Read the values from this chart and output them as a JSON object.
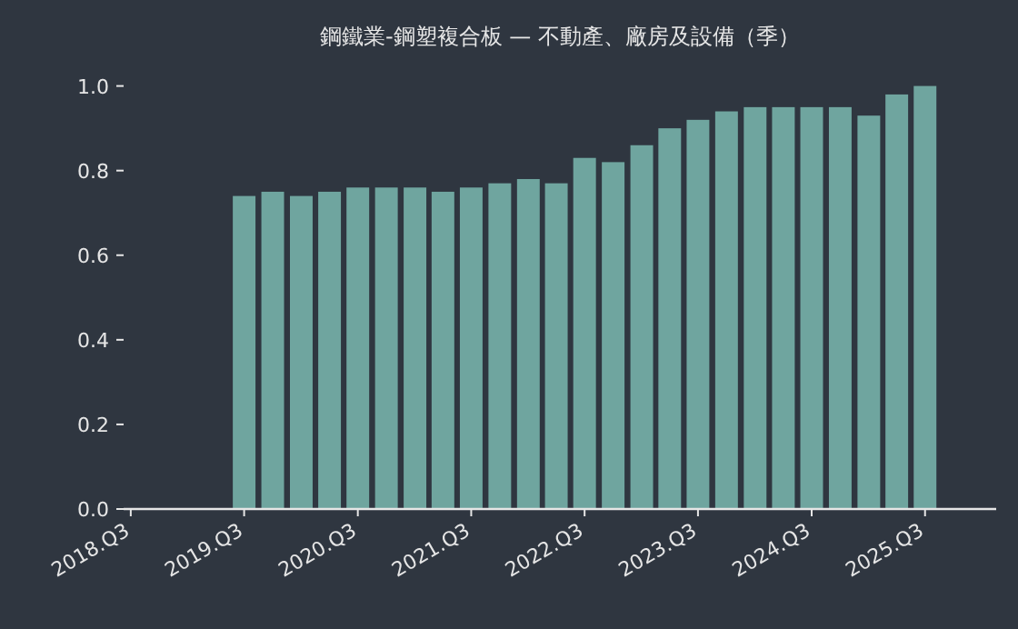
{
  "chart_data": {
    "type": "bar",
    "title": "鋼鐵業-鋼塑複合板 — 不動產、廠房及設備（季）",
    "x": [
      "2019-07",
      "2019-10",
      "2020-01",
      "2020-04",
      "2020-07",
      "2020-10",
      "2021-01",
      "2021-04",
      "2021-07",
      "2021-10",
      "2022-01",
      "2022-04",
      "2022-07",
      "2022-10",
      "2023-01",
      "2023-04",
      "2023-07",
      "2023-10",
      "2024-01",
      "2024-04",
      "2024-07",
      "2024-10",
      "2025-01",
      "2025-04",
      "2025-07"
    ],
    "values": [
      0.74,
      0.75,
      0.74,
      0.75,
      0.76,
      0.76,
      0.76,
      0.75,
      0.76,
      0.77,
      0.78,
      0.77,
      0.83,
      0.82,
      0.86,
      0.9,
      0.92,
      0.94,
      0.95,
      0.95,
      0.95,
      0.95,
      0.93,
      0.98,
      1.0
    ],
    "color": "#6fa59f",
    "xlim": [
      "2018-06-08",
      "2026-02-15"
    ],
    "xticks": [
      {
        "value": "2018-07",
        "label": "2018.Q3"
      },
      {
        "value": "2019-07",
        "label": "2019.Q3"
      },
      {
        "value": "2020-07",
        "label": "2020.Q3"
      },
      {
        "value": "2021-07",
        "label": "2021.Q3"
      },
      {
        "value": "2022-07",
        "label": "2022.Q3"
      },
      {
        "value": "2023-07",
        "label": "2023.Q3"
      },
      {
        "value": "2024-07",
        "label": "2024.Q3"
      },
      {
        "value": "2025-07",
        "label": "2025.Q3"
      }
    ],
    "ylim": [
      0,
      1.0
    ],
    "yticks": [
      {
        "value": 0,
        "label": "0.0"
      },
      {
        "value": 0.2,
        "label": "0.2"
      },
      {
        "value": 0.4,
        "label": "0.4"
      },
      {
        "value": 0.6,
        "label": "0.6"
      },
      {
        "value": 0.8,
        "label": "0.8"
      },
      {
        "value": 1.0,
        "label": "1.0"
      }
    ]
  }
}
